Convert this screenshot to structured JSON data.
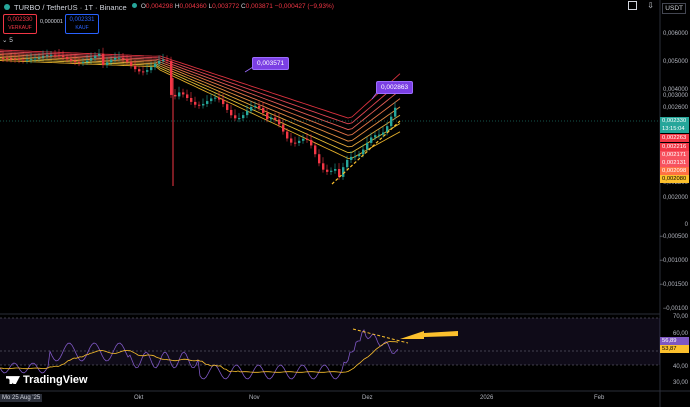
{
  "header": {
    "symbol": "TURBO / TetherUS · 1T · Binance",
    "ohlc": [
      {
        "k": "O",
        "v": "0,004298"
      },
      {
        "k": "H",
        "v": "0,004360"
      },
      {
        "k": "L",
        "v": "0,003772"
      },
      {
        "k": "C",
        "v": "0,003871"
      },
      {
        "k": "",
        "v": "−0,000427 (−9,93%)"
      }
    ],
    "sell_price": "0,002330",
    "sell_label": "VERKAUF",
    "buy_price": "0,002331",
    "buy_label": "KAUF",
    "spread": "0,000001",
    "indicator": "5",
    "currency": "USDT"
  },
  "price_axis": [
    "0,006000",
    "0,005000",
    "0,004000",
    "0,003000",
    "0,002600",
    "0,002200",
    "0,002000",
    "0",
    "−0,000500",
    "−0,001000",
    "−0,001500",
    "−0,00100"
  ],
  "price_labels": [
    {
      "text": "0,002330",
      "color": "#26a69a"
    },
    {
      "text": "13:15:04",
      "color": "#26a69a"
    },
    {
      "text": "0,002263",
      "color": "#f23645"
    },
    {
      "text": "0,002216",
      "color": "#f23645"
    },
    {
      "text": "0,002171",
      "color": "#f7525f"
    },
    {
      "text": "0,002131",
      "color": "#f7525f"
    },
    {
      "text": "0,002098",
      "color": "#ff7043"
    },
    {
      "text": "0,002080",
      "color": "#fbc02d"
    }
  ],
  "rsi_axis": [
    "70,00",
    "60,00",
    "50,00",
    "40,00",
    "30,00"
  ],
  "rsi_labels": [
    {
      "text": "56,89",
      "color": "#7e57c2"
    },
    {
      "text": "53,87",
      "color": "#fbc02d"
    }
  ],
  "time_axis": [
    "Okt",
    "Nov",
    "Dez",
    "2026",
    "Feb"
  ],
  "date_start": "Mo 25 Aug '25",
  "callouts": [
    "0,003571",
    "0,002863"
  ],
  "logo": "TradingView",
  "colors": {
    "up": "#26a69a",
    "down": "#f23645",
    "rsi": "#7e57c2",
    "rsi_ma": "#fbc02d",
    "callout": "#7b3fe4"
  }
}
